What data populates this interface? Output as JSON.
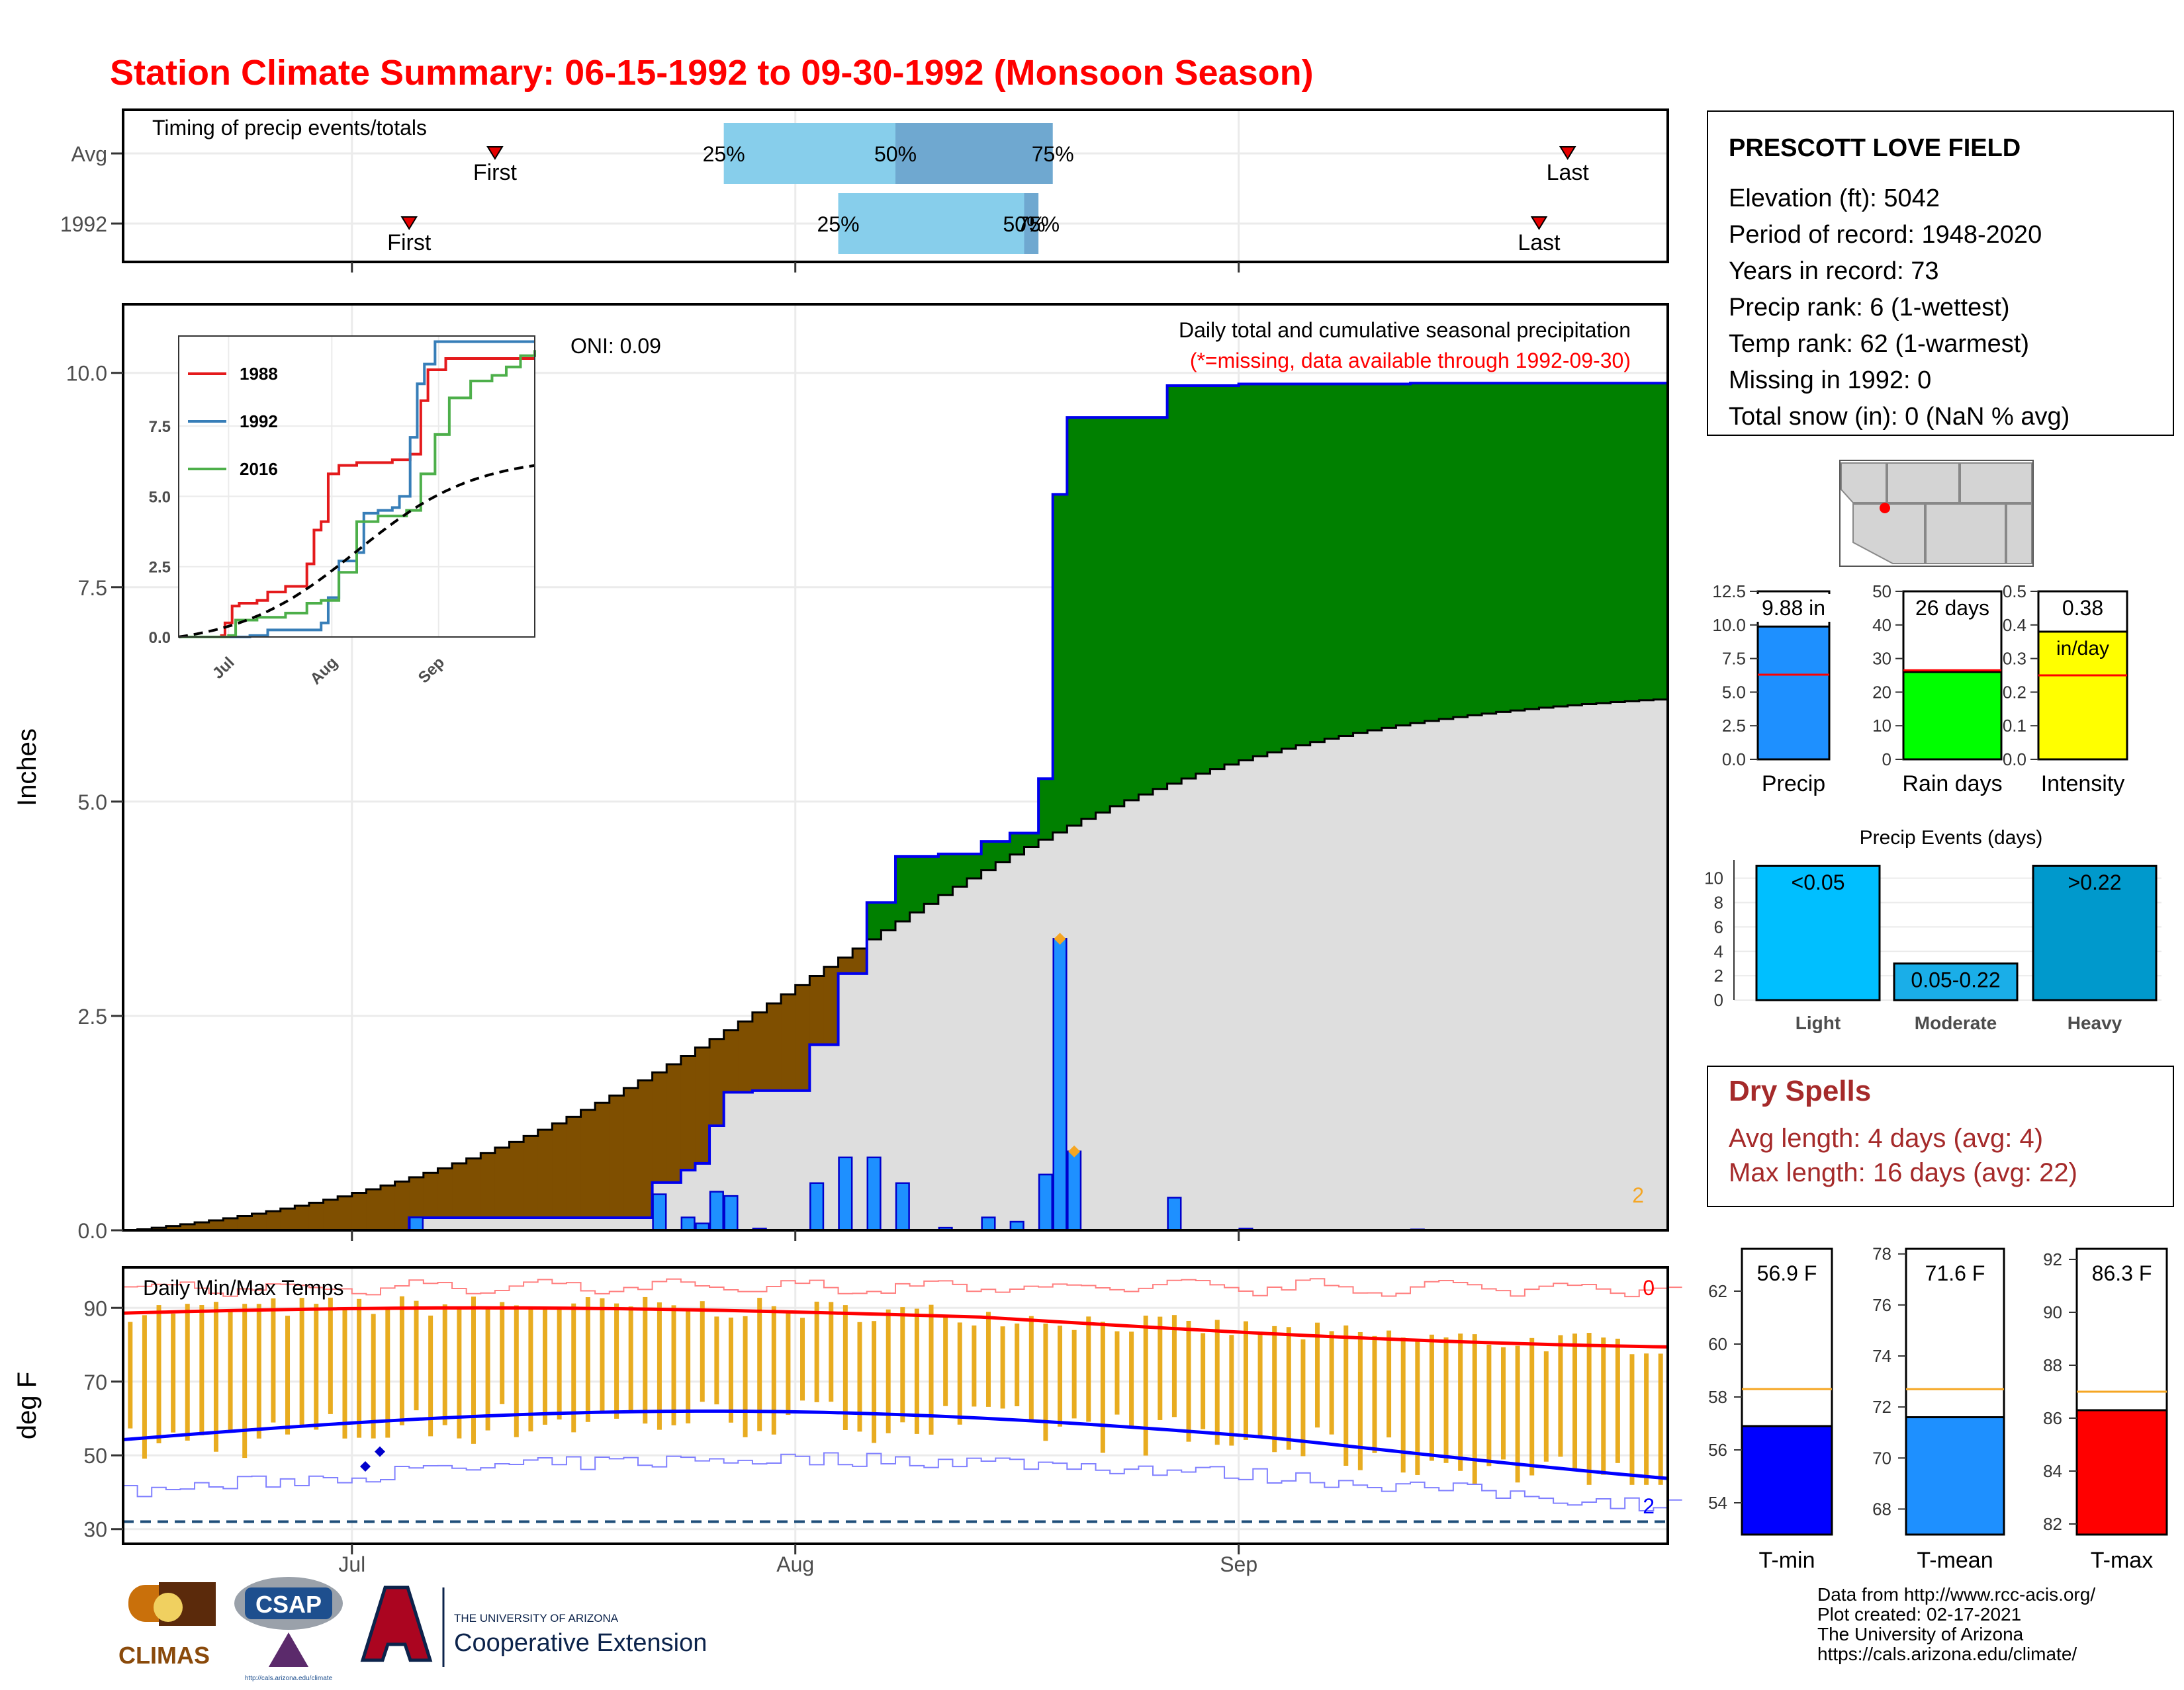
{
  "title": "Station Climate Summary: 06-15-1992 to 09-30-1992 (Monsoon Season)",
  "colors": {
    "title": "#ff0000",
    "precip_blue": "#1e90ff",
    "green_surplus": "#008000",
    "brown_deficit": "#7f4f00",
    "normal_fill": "#dedede",
    "light_blue_q": "#87ceeb",
    "mid_blue_q": "#6fa8d0",
    "tmax": "#ff0000",
    "tmin": "#0000ff",
    "daily_bar": "#e8ac20",
    "rain_days_green": "#00ff00",
    "intensity_yellow": "#ffff00",
    "dry_spells": "#a52a2a",
    "event_light": "#00bfff",
    "event_moderate": "#1aaee8",
    "event_heavy": "#0099cc"
  },
  "timing_panel": {
    "title": "Timing of precip events/totals",
    "rows": [
      {
        "label": "Avg",
        "first": "07-11",
        "q25": "07-27",
        "q50": "08-08",
        "q75": "08-19",
        "last": "09-24"
      },
      {
        "label": "1992",
        "first": "07-05",
        "q25": "08-04",
        "q50": "08-17",
        "q75": "08-18",
        "last": "09-22"
      }
    ],
    "first_label": "First",
    "last_label": "Last",
    "q_labels": [
      "25%",
      "50%",
      "75%"
    ]
  },
  "precip_panel": {
    "ylabel": "Inches",
    "header": "Daily total and cumulative seasonal precipitation",
    "missing_note": "(*=missing, data available through 1992-09-30)",
    "oni": "ONI: 0.09",
    "count_note": "2",
    "y_ticks": [
      "0.0",
      "2.5",
      "5.0",
      "7.5",
      "10.0"
    ]
  },
  "inset": {
    "y_ticks": [
      "0.0",
      "2.5",
      "5.0",
      "7.5"
    ],
    "x_ticks": [
      "Jul",
      "Aug",
      "Sep"
    ],
    "legend": [
      {
        "name": "1988",
        "color": "#e41a1c"
      },
      {
        "name": "1992",
        "color": "#377eb8"
      },
      {
        "name": "2016",
        "color": "#4daf4a"
      }
    ]
  },
  "temp_panel": {
    "title": "Daily Min/Max Temps",
    "ylabel": "deg F",
    "y_ticks": [
      "30",
      "50",
      "70",
      "90"
    ],
    "top_count": "0",
    "bottom_count": "2"
  },
  "x_axis": {
    "ticks": [
      "Jul",
      "Aug",
      "Sep"
    ]
  },
  "station": {
    "name": "PRESCOTT LOVE FIELD",
    "lines": [
      "Elevation (ft): 5042",
      "Period of record: 1948-2020",
      "Years in record: 73",
      "Precip rank: 6 (1-wettest)",
      "Temp rank: 62 (1-warmest)",
      "Missing in 1992: 0",
      "Total snow (in): 0 (NaN % avg)"
    ]
  },
  "summary_bars": [
    {
      "label": "Precip",
      "value_text": "9.88 in",
      "ticks": [
        "0.0",
        "2.5",
        "5.0",
        "7.5",
        "10.0",
        "12.5"
      ],
      "value": 9.88,
      "avg": 6.3,
      "max": 12.5,
      "color": "#1e90ff"
    },
    {
      "label": "Rain days",
      "value_text": "26 days",
      "ticks": [
        "0",
        "10",
        "20",
        "30",
        "40",
        "50"
      ],
      "value": 26,
      "avg": 26.5,
      "max": 50,
      "color": "#00ff00"
    },
    {
      "label": "Intensity",
      "value_text": "0.38",
      "value_text2": "in/day",
      "ticks": [
        "0.0",
        "0.1",
        "0.2",
        "0.3",
        "0.4",
        "0.5"
      ],
      "value": 0.38,
      "avg": 0.25,
      "max": 0.5,
      "color": "#ffff00"
    }
  ],
  "precip_events": {
    "title": "Precip Events (days)",
    "y_ticks": [
      "0",
      "2",
      "4",
      "6",
      "8",
      "10"
    ],
    "bars": [
      {
        "category": "Light",
        "label": "<0.05",
        "value": 11
      },
      {
        "category": "Moderate",
        "label": "0.05-0.22",
        "value": 3
      },
      {
        "category": "Heavy",
        "label": ">0.22",
        "value": 11
      }
    ]
  },
  "dry_spells": {
    "title": "Dry Spells",
    "avg_line": "Avg length: 4 days (avg: 4)",
    "max_line": "Max length: 16 days (avg: 22)"
  },
  "temp_summary": [
    {
      "label": "T-min",
      "value_text": "56.9 F",
      "value": 56.9,
      "avg": 58.3,
      "ticks": [
        "54",
        "56",
        "58",
        "60",
        "62"
      ],
      "min": 52.8,
      "max": 63.6,
      "color": "#0000ff"
    },
    {
      "label": "T-mean",
      "value_text": "71.6 F",
      "value": 71.6,
      "avg": 72.7,
      "ticks": [
        "68",
        "70",
        "72",
        "74",
        "76",
        "78"
      ],
      "min": 67.0,
      "max": 78.2,
      "color": "#1e90ff"
    },
    {
      "label": "T-max",
      "value_text": "86.3 F",
      "value": 86.3,
      "avg": 87.0,
      "ticks": [
        "82",
        "84",
        "86",
        "88",
        "90",
        "92"
      ],
      "min": 81.6,
      "max": 92.4,
      "color": "#ff0000"
    }
  ],
  "footer": {
    "lines": [
      "Data from http://www.rcc-acis.org/",
      "Plot created: 02-17-2021",
      "The University of Arizona",
      "https://cals.arizona.edu/climate/"
    ],
    "climas": "CLIMAS",
    "csap": "CSAP",
    "csap_url": "http://cals.arizona.edu/climate",
    "ua_top": "THE UNIVERSITY OF ARIZONA",
    "ua_bottom": "Cooperative Extension"
  },
  "chart_data": {
    "type": "area",
    "title": "Station Climate Summary: 06-15-1992 to 09-30-1992 (Monsoon Season)",
    "xlabel": "",
    "ylabel": "Inches",
    "ylim": [
      0,
      10.8
    ],
    "x_range": [
      "1992-06-15",
      "1992-09-30"
    ],
    "precip_events_1992": [
      {
        "date": "1992-07-05",
        "value": 0.15
      },
      {
        "date": "1992-07-22",
        "value": 0.42
      },
      {
        "date": "1992-07-24",
        "value": 0.15
      },
      {
        "date": "1992-07-25",
        "value": 0.08
      },
      {
        "date": "1992-07-26",
        "value": 0.45
      },
      {
        "date": "1992-07-27",
        "value": 0.4
      },
      {
        "date": "1992-07-29",
        "value": 0.02
      },
      {
        "date": "1992-08-02",
        "value": 0.55
      },
      {
        "date": "1992-08-04",
        "value": 0.85
      },
      {
        "date": "1992-08-06",
        "value": 0.85
      },
      {
        "date": "1992-08-08",
        "value": 0.55
      },
      {
        "date": "1992-08-11",
        "value": 0.03
      },
      {
        "date": "1992-08-14",
        "value": 0.15
      },
      {
        "date": "1992-08-16",
        "value": 0.1
      },
      {
        "date": "1992-08-18",
        "value": 0.65
      },
      {
        "date": "1992-08-19",
        "value": 3.4
      },
      {
        "date": "1992-08-20",
        "value": 0.92
      },
      {
        "date": "1992-08-27",
        "value": 0.38
      },
      {
        "date": "1992-09-01",
        "value": 0.02
      },
      {
        "date": "1992-09-13",
        "value": 0.01
      }
    ],
    "normal_cumulative_end": 6.2,
    "cumulative_total": 9.88,
    "daily_temps_summary": {
      "tmax_normal_range": [
        80,
        91
      ],
      "tmin_normal_range": [
        49,
        63
      ],
      "record_daily_low_line": 32
    }
  }
}
